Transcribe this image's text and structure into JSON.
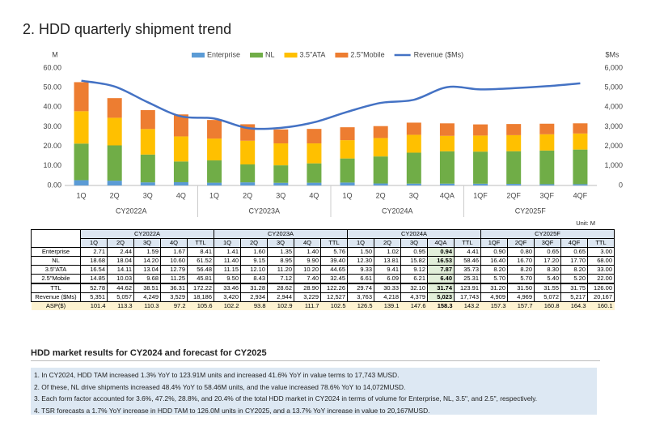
{
  "title": "2. HDD quarterly shipment trend",
  "chart_data": {
    "type": "bar",
    "stacked": true,
    "y_label": "M",
    "y2_label": "$Ms",
    "categories": [
      "1Q",
      "2Q",
      "3Q",
      "4Q",
      "1Q",
      "2Q",
      "3Q",
      "4Q",
      "1Q",
      "2Q",
      "3Q",
      "4QA",
      "1QF",
      "2QF",
      "3QF",
      "4QF"
    ],
    "x_groups": [
      "CY2022A",
      "CY2023A",
      "CY2024A",
      "CY2025F"
    ],
    "series": [
      {
        "name": "Enterprise",
        "color": "#5b9bd5",
        "values": [
          2.71,
          2.44,
          1.59,
          1.67,
          1.41,
          1.6,
          1.35,
          1.4,
          1.5,
          1.02,
          0.95,
          0.94,
          0.9,
          0.8,
          0.65,
          0.65
        ]
      },
      {
        "name": "NL",
        "color": "#70ad47",
        "values": [
          18.68,
          18.04,
          14.2,
          10.6,
          11.4,
          9.15,
          8.95,
          9.9,
          12.3,
          13.81,
          15.82,
          16.53,
          16.4,
          16.7,
          17.2,
          17.7
        ]
      },
      {
        "name": "3.5\"ATA",
        "color": "#ffc000",
        "values": [
          16.54,
          14.11,
          13.04,
          12.79,
          11.15,
          12.1,
          11.2,
          10.2,
          9.33,
          9.41,
          9.12,
          7.87,
          8.2,
          8.2,
          8.3,
          8.2
        ]
      },
      {
        "name": "2.5\"Mobile",
        "color": "#ed7d31",
        "values": [
          14.85,
          10.03,
          9.68,
          11.25,
          9.5,
          8.43,
          7.12,
          7.4,
          6.61,
          6.09,
          6.21,
          6.4,
          5.7,
          5.7,
          5.4,
          5.2
        ]
      },
      {
        "name": "Revenue ($Ms)",
        "color": "#4472c4",
        "type": "line",
        "axis": "y2",
        "values": [
          5351,
          5057,
          4249,
          3529,
          3420,
          2934,
          2944,
          3229,
          3763,
          4218,
          4379,
          5023,
          4909,
          4969,
          5072,
          5217
        ]
      }
    ],
    "ylim": [
      0,
      60
    ],
    "yticks": [
      {
        "value": 0,
        "label": "0.00"
      },
      {
        "value": 10,
        "label": "10.00"
      },
      {
        "value": 20,
        "label": "20.00"
      },
      {
        "value": 30,
        "label": "30.00"
      },
      {
        "value": 40,
        "label": "40.00"
      },
      {
        "value": 50,
        "label": "50.00"
      },
      {
        "value": 60,
        "label": "60.00"
      }
    ],
    "y2lim": [
      0,
      6000
    ],
    "y2ticks": [
      0,
      {
        "value": 1000,
        "label": "1,000"
      },
      {
        "value": 2000,
        "label": "2,000"
      },
      {
        "value": 3000,
        "label": "3,000"
      },
      {
        "value": 4000,
        "label": "4,000"
      },
      {
        "value": 5000,
        "label": "5,000"
      },
      {
        "value": 6000,
        "label": "6,000"
      }
    ],
    "grid": false,
    "legend": "top"
  },
  "table": {
    "unit": "Unit: M",
    "header_groups": [
      "CY2022A",
      "CY2023A",
      "CY2024A",
      "CY2025F"
    ],
    "columns": [
      "1Q",
      "2Q",
      "3Q",
      "4Q",
      "TTL",
      "1Q",
      "2Q",
      "3Q",
      "4Q",
      "TTL",
      "1Q",
      "2Q",
      "3Q",
      "4QA",
      "TTL",
      "1QF",
      "2QF",
      "3QF",
      "4QF",
      "TTL"
    ],
    "rows": [
      {
        "label": "Enterprise",
        "cells": [
          "2.71",
          "2.44",
          "1.59",
          "1.67",
          "8.41",
          "1.41",
          "1.60",
          "1.35",
          "1.40",
          "5.76",
          "1.50",
          "1.02",
          "0.95",
          "0.94",
          "4.41",
          "0.90",
          "0.80",
          "0.65",
          "0.65",
          "3.00"
        ]
      },
      {
        "label": "NL",
        "cells": [
          "18.68",
          "18.04",
          "14.20",
          "10.60",
          "61.52",
          "11.40",
          "9.15",
          "8.95",
          "9.90",
          "39.40",
          "12.30",
          "13.81",
          "15.82",
          "16.53",
          "58.46",
          "16.40",
          "16.70",
          "17.20",
          "17.70",
          "68.00"
        ]
      },
      {
        "label": "3.5\"ATA",
        "cells": [
          "16.54",
          "14.11",
          "13.04",
          "12.79",
          "56.48",
          "11.15",
          "12.10",
          "11.20",
          "10.20",
          "44.65",
          "9.33",
          "9.41",
          "9.12",
          "7.87",
          "35.73",
          "8.20",
          "8.20",
          "8.30",
          "8.20",
          "33.00"
        ]
      },
      {
        "label": "2.5\"Mobile",
        "cells": [
          "14.85",
          "10.03",
          "9.68",
          "11.25",
          "45.81",
          "9.50",
          "8.43",
          "7.12",
          "7.40",
          "32.45",
          "6.61",
          "6.09",
          "6.21",
          "6.40",
          "25.31",
          "5.70",
          "5.70",
          "5.40",
          "5.20",
          "22.00"
        ]
      },
      {
        "label": "TTL",
        "cells": [
          "52.78",
          "44.62",
          "38.51",
          "36.31",
          "172.22",
          "33.46",
          "31.28",
          "28.62",
          "28.90",
          "122.26",
          "29.74",
          "30.33",
          "32.10",
          "31.74",
          "123.91",
          "31.20",
          "31.50",
          "31.55",
          "31.75",
          "126.00"
        ]
      },
      {
        "label": "Revenue ($Ms)",
        "cells": [
          "5,351",
          "5,057",
          "4,249",
          "3,529",
          "18,186",
          "3,420",
          "2,934",
          "2,944",
          "3,229",
          "12,527",
          "3,763",
          "4,218",
          "4,379",
          "5,023",
          "17,743",
          "4,909",
          "4,969",
          "5,072",
          "5,217",
          "20,167"
        ]
      },
      {
        "label": "ASP($)",
        "cells": [
          "101.4",
          "113.3",
          "110.3",
          "97.2",
          "105.6",
          "102.2",
          "93.8",
          "102.9",
          "111.7",
          "102.5",
          "126.5",
          "139.1",
          "147.6",
          "158.3",
          "143.2",
          "157.3",
          "157.7",
          "160.8",
          "164.3",
          "160.1"
        ]
      }
    ]
  },
  "notes": {
    "heading": "HDD market results for CY2024 and forecast for CY2025",
    "items": [
      "1. In CY2024, HDD TAM increased 1.3% YoY to 123.91M units and increased 41.6% YoY in value terms to 17,743 MUSD.",
      "2. Of these, NL drive shipments increased 48.4% YoY to 58.46M units, and the value increased 78.6% YoY to 14,072MUSD.",
      "3. Each form factor accounted for 3.6%, 47.2%, 28.8%, and 20.4% of the total HDD market in CY2024 in terms of volume for Enterprise, NL, 3.5\", and 2.5\", respectively.",
      "4. TSR forecasts a 1.7% YoY increase in HDD TAM to 126.0M units in CY2025, and a 13.7% YoY increase in value to 20,167MUSD."
    ]
  }
}
